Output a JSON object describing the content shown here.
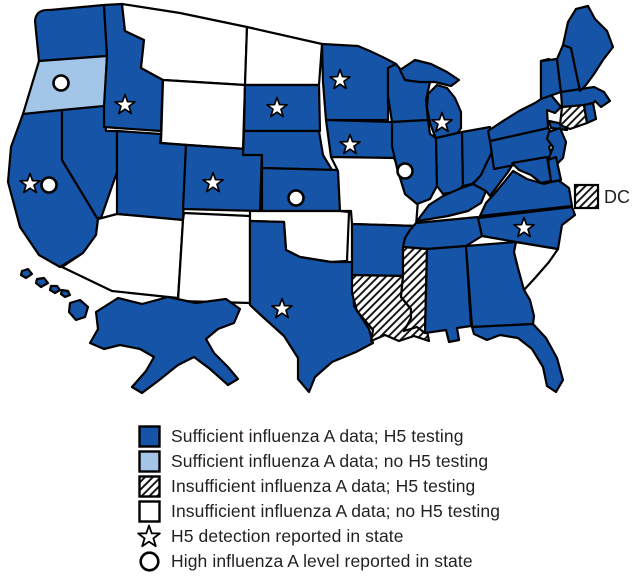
{
  "map": {
    "dc_label": "DC",
    "colors": {
      "dark_blue": "#1654A8",
      "light_blue": "#A3C6E8",
      "outline": "#000000",
      "hatch_stripe": "#1a1a1a",
      "white": "#FFFFFF"
    },
    "category_labels": {
      "sufficient_h5": "Sufficient influenza A data; H5 testing",
      "sufficient_no_h5": "Sufficient influenza A data; no H5 testing",
      "insufficient_h5": "Insufficient influenza A data; H5 testing",
      "insufficient_no_h5": "Insufficient influenza A data; no H5 testing"
    },
    "states": [
      {
        "id": "WA",
        "name": "Washington",
        "category": "sufficient_h5",
        "h5_detection": false,
        "high_flu_level": false
      },
      {
        "id": "OR",
        "name": "Oregon",
        "category": "sufficient_no_h5",
        "h5_detection": false,
        "high_flu_level": true
      },
      {
        "id": "CA",
        "name": "California",
        "category": "sufficient_h5",
        "h5_detection": true,
        "high_flu_level": true
      },
      {
        "id": "NV",
        "name": "Nevada",
        "category": "sufficient_h5",
        "h5_detection": false,
        "high_flu_level": false
      },
      {
        "id": "ID",
        "name": "Idaho",
        "category": "sufficient_h5",
        "h5_detection": true,
        "high_flu_level": false
      },
      {
        "id": "MT",
        "name": "Montana",
        "category": "insufficient_no_h5",
        "h5_detection": false,
        "high_flu_level": false
      },
      {
        "id": "WY",
        "name": "Wyoming",
        "category": "insufficient_no_h5",
        "h5_detection": false,
        "high_flu_level": false
      },
      {
        "id": "UT",
        "name": "Utah",
        "category": "sufficient_h5",
        "h5_detection": false,
        "high_flu_level": false
      },
      {
        "id": "CO",
        "name": "Colorado",
        "category": "sufficient_h5",
        "h5_detection": true,
        "high_flu_level": false
      },
      {
        "id": "AZ",
        "name": "Arizona",
        "category": "insufficient_no_h5",
        "h5_detection": false,
        "high_flu_level": false
      },
      {
        "id": "NM",
        "name": "New Mexico",
        "category": "insufficient_no_h5",
        "h5_detection": false,
        "high_flu_level": false
      },
      {
        "id": "ND",
        "name": "North Dakota",
        "category": "insufficient_no_h5",
        "h5_detection": false,
        "high_flu_level": false
      },
      {
        "id": "SD",
        "name": "South Dakota",
        "category": "sufficient_h5",
        "h5_detection": true,
        "high_flu_level": false
      },
      {
        "id": "NE",
        "name": "Nebraska",
        "category": "sufficient_h5",
        "h5_detection": false,
        "high_flu_level": false
      },
      {
        "id": "KS",
        "name": "Kansas",
        "category": "sufficient_h5",
        "h5_detection": false,
        "high_flu_level": true
      },
      {
        "id": "OK",
        "name": "Oklahoma",
        "category": "insufficient_no_h5",
        "h5_detection": false,
        "high_flu_level": false
      },
      {
        "id": "TX",
        "name": "Texas",
        "category": "sufficient_h5",
        "h5_detection": true,
        "high_flu_level": false
      },
      {
        "id": "MN",
        "name": "Minnesota",
        "category": "sufficient_h5",
        "h5_detection": true,
        "high_flu_level": false
      },
      {
        "id": "IA",
        "name": "Iowa",
        "category": "sufficient_h5",
        "h5_detection": true,
        "high_flu_level": false
      },
      {
        "id": "MO",
        "name": "Missouri",
        "category": "insufficient_no_h5",
        "h5_detection": false,
        "high_flu_level": false
      },
      {
        "id": "AR",
        "name": "Arkansas",
        "category": "sufficient_h5",
        "h5_detection": false,
        "high_flu_level": false
      },
      {
        "id": "LA",
        "name": "Louisiana",
        "category": "insufficient_h5",
        "h5_detection": false,
        "high_flu_level": false
      },
      {
        "id": "WI",
        "name": "Wisconsin",
        "category": "sufficient_h5",
        "h5_detection": false,
        "high_flu_level": false
      },
      {
        "id": "IL",
        "name": "Illinois",
        "category": "sufficient_h5",
        "h5_detection": false,
        "high_flu_level": true
      },
      {
        "id": "MI",
        "name": "Michigan",
        "category": "sufficient_h5",
        "h5_detection": true,
        "high_flu_level": false
      },
      {
        "id": "IN",
        "name": "Indiana",
        "category": "sufficient_h5",
        "h5_detection": false,
        "high_flu_level": false
      },
      {
        "id": "OH",
        "name": "Ohio",
        "category": "sufficient_h5",
        "h5_detection": false,
        "high_flu_level": false
      },
      {
        "id": "KY",
        "name": "Kentucky",
        "category": "sufficient_h5",
        "h5_detection": false,
        "high_flu_level": false
      },
      {
        "id": "TN",
        "name": "Tennessee",
        "category": "sufficient_h5",
        "h5_detection": false,
        "high_flu_level": false
      },
      {
        "id": "MS",
        "name": "Mississippi",
        "category": "insufficient_h5",
        "h5_detection": false,
        "high_flu_level": false
      },
      {
        "id": "AL",
        "name": "Alabama",
        "category": "sufficient_h5",
        "h5_detection": false,
        "high_flu_level": false
      },
      {
        "id": "GA",
        "name": "Georgia",
        "category": "sufficient_h5",
        "h5_detection": false,
        "high_flu_level": false
      },
      {
        "id": "FL",
        "name": "Florida",
        "category": "sufficient_h5",
        "h5_detection": false,
        "high_flu_level": false
      },
      {
        "id": "SC",
        "name": "South Carolina",
        "category": "insufficient_no_h5",
        "h5_detection": false,
        "high_flu_level": false
      },
      {
        "id": "NC",
        "name": "North Carolina",
        "category": "sufficient_h5",
        "h5_detection": true,
        "high_flu_level": false
      },
      {
        "id": "VA",
        "name": "Virginia",
        "category": "sufficient_h5",
        "h5_detection": false,
        "high_flu_level": false
      },
      {
        "id": "WV",
        "name": "West Virginia",
        "category": "sufficient_h5",
        "h5_detection": false,
        "high_flu_level": false
      },
      {
        "id": "PA",
        "name": "Pennsylvania",
        "category": "sufficient_h5",
        "h5_detection": false,
        "high_flu_level": false
      },
      {
        "id": "NY",
        "name": "New York",
        "category": "sufficient_h5",
        "h5_detection": false,
        "high_flu_level": false
      },
      {
        "id": "NJ",
        "name": "New Jersey",
        "category": "sufficient_h5",
        "h5_detection": false,
        "high_flu_level": false
      },
      {
        "id": "DE",
        "name": "Delaware",
        "category": "sufficient_h5",
        "h5_detection": false,
        "high_flu_level": false
      },
      {
        "id": "MD",
        "name": "Maryland",
        "category": "sufficient_h5",
        "h5_detection": false,
        "high_flu_level": false
      },
      {
        "id": "VT",
        "name": "Vermont",
        "category": "sufficient_h5",
        "h5_detection": false,
        "high_flu_level": false
      },
      {
        "id": "NH",
        "name": "New Hampshire",
        "category": "sufficient_h5",
        "h5_detection": false,
        "high_flu_level": false
      },
      {
        "id": "MA",
        "name": "Massachusetts",
        "category": "sufficient_h5",
        "h5_detection": false,
        "high_flu_level": false
      },
      {
        "id": "CT",
        "name": "Connecticut",
        "category": "insufficient_h5",
        "h5_detection": false,
        "high_flu_level": false
      },
      {
        "id": "RI",
        "name": "Rhode Island",
        "category": "sufficient_h5",
        "h5_detection": false,
        "high_flu_level": false
      },
      {
        "id": "ME",
        "name": "Maine",
        "category": "sufficient_h5",
        "h5_detection": false,
        "high_flu_level": false
      },
      {
        "id": "AK",
        "name": "Alaska",
        "category": "sufficient_h5",
        "h5_detection": false,
        "high_flu_level": false
      },
      {
        "id": "HI",
        "name": "Hawaii",
        "category": "sufficient_h5",
        "h5_detection": false,
        "high_flu_level": false
      },
      {
        "id": "DC",
        "name": "District of Columbia",
        "category": "insufficient_h5",
        "h5_detection": false,
        "high_flu_level": false
      }
    ]
  },
  "legend": {
    "items": [
      {
        "key": "sufficient-h5",
        "swatch": "dark",
        "label": "Sufficient influenza A data; H5 testing"
      },
      {
        "key": "sufficient-no-h5",
        "swatch": "light",
        "label": "Sufficient influenza A data; no H5 testing"
      },
      {
        "key": "insufficient-h5",
        "swatch": "hatch",
        "label": "Insufficient influenza A data; H5 testing"
      },
      {
        "key": "insufficient-no-h5",
        "swatch": "white",
        "label": "Insufficient influenza A data; no H5 testing"
      },
      {
        "key": "h5-detection",
        "swatch": "star",
        "label": "H5 detection reported in state"
      },
      {
        "key": "high-flu-level",
        "swatch": "circle",
        "label": "High influenza A level reported in state"
      }
    ]
  }
}
